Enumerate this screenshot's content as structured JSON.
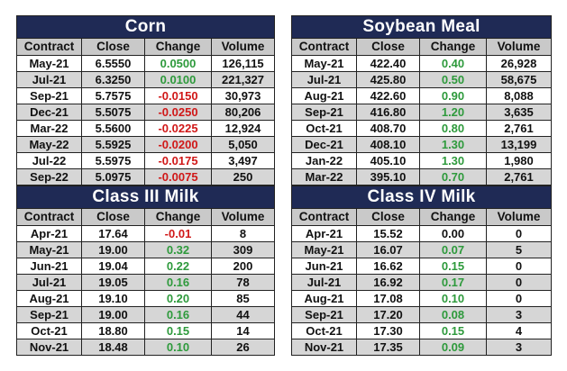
{
  "columns": [
    "Contract",
    "Close",
    "Change",
    "Volume"
  ],
  "colors": {
    "header_bg": "#1f2a55",
    "up": "#2e9a3c",
    "down": "#d01818"
  },
  "panels": [
    {
      "title": "Corn",
      "rows": [
        {
          "contract": "May-21",
          "close": "6.5550",
          "change": "0.0500",
          "dir": "up",
          "volume": "126,115"
        },
        {
          "contract": "Jul-21",
          "close": "6.3250",
          "change": "0.0100",
          "dir": "up",
          "volume": "221,327"
        },
        {
          "contract": "Sep-21",
          "close": "5.7575",
          "change": "-0.0150",
          "dir": "down",
          "volume": "30,973"
        },
        {
          "contract": "Dec-21",
          "close": "5.5075",
          "change": "-0.0250",
          "dir": "down",
          "volume": "80,206"
        },
        {
          "contract": "Mar-22",
          "close": "5.5600",
          "change": "-0.0225",
          "dir": "down",
          "volume": "12,924"
        },
        {
          "contract": "May-22",
          "close": "5.5925",
          "change": "-0.0200",
          "dir": "down",
          "volume": "5,050"
        },
        {
          "contract": "Jul-22",
          "close": "5.5975",
          "change": "-0.0175",
          "dir": "down",
          "volume": "3,497"
        },
        {
          "contract": "Sep-22",
          "close": "5.0975",
          "change": "-0.0075",
          "dir": "down",
          "volume": "250"
        }
      ]
    },
    {
      "title": "Soybean Meal",
      "rows": [
        {
          "contract": "May-21",
          "close": "422.40",
          "change": "0.40",
          "dir": "up",
          "volume": "26,928"
        },
        {
          "contract": "Jul-21",
          "close": "425.80",
          "change": "0.50",
          "dir": "up",
          "volume": "58,675"
        },
        {
          "contract": "Aug-21",
          "close": "422.60",
          "change": "0.90",
          "dir": "up",
          "volume": "8,088"
        },
        {
          "contract": "Sep-21",
          "close": "416.80",
          "change": "1.20",
          "dir": "up",
          "volume": "3,635"
        },
        {
          "contract": "Oct-21",
          "close": "408.70",
          "change": "0.80",
          "dir": "up",
          "volume": "2,761"
        },
        {
          "contract": "Dec-21",
          "close": "408.10",
          "change": "1.30",
          "dir": "up",
          "volume": "13,199"
        },
        {
          "contract": "Jan-22",
          "close": "405.10",
          "change": "1.30",
          "dir": "up",
          "volume": "1,980"
        },
        {
          "contract": "Mar-22",
          "close": "395.10",
          "change": "0.70",
          "dir": "up",
          "volume": "2,761"
        }
      ]
    },
    {
      "title": "Class III Milk",
      "rows": [
        {
          "contract": "Apr-21",
          "close": "17.64",
          "change": "-0.01",
          "dir": "down",
          "volume": "8"
        },
        {
          "contract": "May-21",
          "close": "19.00",
          "change": "0.32",
          "dir": "up",
          "volume": "309"
        },
        {
          "contract": "Jun-21",
          "close": "19.04",
          "change": "0.22",
          "dir": "up",
          "volume": "200"
        },
        {
          "contract": "Jul-21",
          "close": "19.05",
          "change": "0.16",
          "dir": "up",
          "volume": "78"
        },
        {
          "contract": "Aug-21",
          "close": "19.10",
          "change": "0.20",
          "dir": "up",
          "volume": "85"
        },
        {
          "contract": "Sep-21",
          "close": "19.00",
          "change": "0.16",
          "dir": "up",
          "volume": "44"
        },
        {
          "contract": "Oct-21",
          "close": "18.80",
          "change": "0.15",
          "dir": "up",
          "volume": "14"
        },
        {
          "contract": "Nov-21",
          "close": "18.48",
          "change": "0.10",
          "dir": "up",
          "volume": "26"
        }
      ]
    },
    {
      "title": "Class IV Milk",
      "rows": [
        {
          "contract": "Apr-21",
          "close": "15.52",
          "change": "0.00",
          "dir": "flat",
          "volume": "0"
        },
        {
          "contract": "May-21",
          "close": "16.07",
          "change": "0.07",
          "dir": "up",
          "volume": "5"
        },
        {
          "contract": "Jun-21",
          "close": "16.62",
          "change": "0.15",
          "dir": "up",
          "volume": "0"
        },
        {
          "contract": "Jul-21",
          "close": "16.92",
          "change": "0.17",
          "dir": "up",
          "volume": "0"
        },
        {
          "contract": "Aug-21",
          "close": "17.08",
          "change": "0.10",
          "dir": "up",
          "volume": "0"
        },
        {
          "contract": "Sep-21",
          "close": "17.20",
          "change": "0.08",
          "dir": "up",
          "volume": "3"
        },
        {
          "contract": "Oct-21",
          "close": "17.30",
          "change": "0.15",
          "dir": "up",
          "volume": "4"
        },
        {
          "contract": "Nov-21",
          "close": "17.35",
          "change": "0.09",
          "dir": "up",
          "volume": "3"
        }
      ]
    }
  ]
}
